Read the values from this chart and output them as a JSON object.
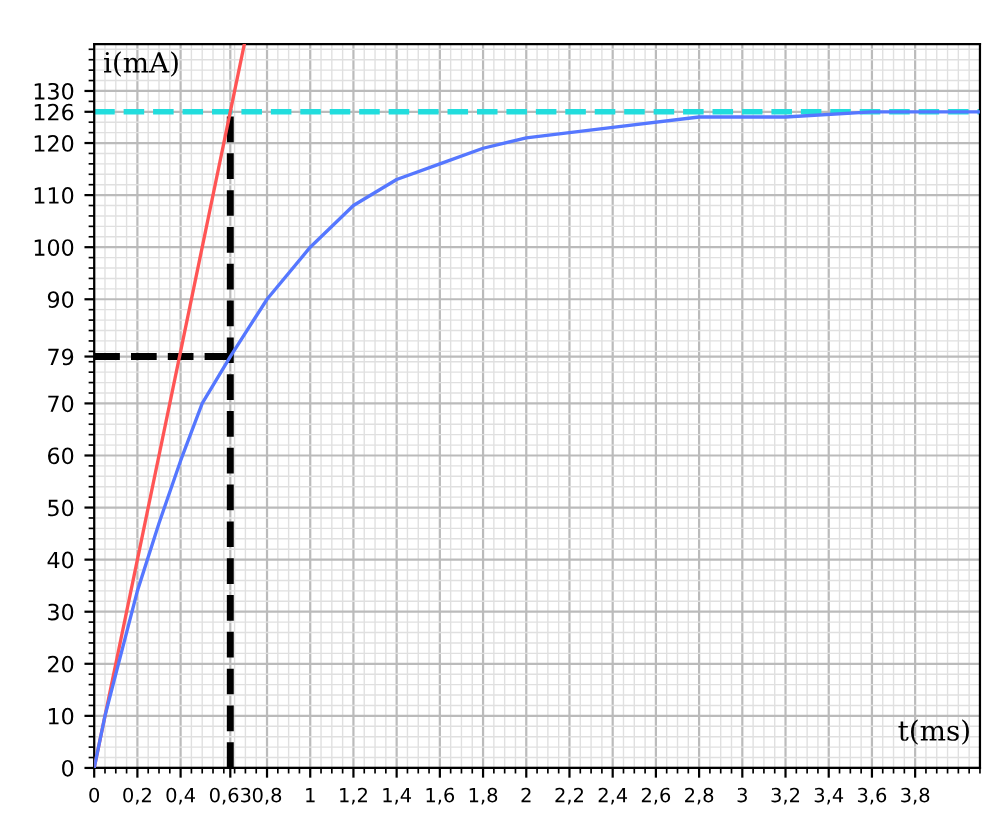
{
  "chart_data": {
    "type": "line",
    "xlabel": "t(ms)",
    "ylabel": "i(mA)",
    "xlim": [
      0,
      4.1
    ],
    "ylim": [
      0,
      139
    ],
    "xticks": [
      0,
      {
        "value": 0.2,
        "label": "0,2"
      },
      {
        "value": 0.4,
        "label": "0,4"
      },
      {
        "value": 0.63,
        "label": "0,63"
      },
      {
        "value": 0.8,
        "label": "0,8"
      },
      1,
      {
        "value": 1.2,
        "label": "1,2"
      },
      {
        "value": 1.4,
        "label": "1,4"
      },
      {
        "value": 1.6,
        "label": "1,6"
      },
      {
        "value": 1.8,
        "label": "1,8"
      },
      2,
      {
        "value": 2.2,
        "label": "2,2"
      },
      {
        "value": 2.4,
        "label": "2,4"
      },
      {
        "value": 2.6,
        "label": "2,6"
      },
      {
        "value": 2.8,
        "label": "2,8"
      },
      3,
      {
        "value": 3.2,
        "label": "3,2"
      },
      {
        "value": 3.4,
        "label": "3,4"
      },
      {
        "value": 3.6,
        "label": "3,6"
      },
      {
        "value": 3.8,
        "label": "3,8"
      }
    ],
    "yticks": [
      0,
      10,
      20,
      30,
      40,
      50,
      60,
      70,
      79,
      90,
      100,
      110,
      120,
      126,
      130
    ],
    "grid": true,
    "marker": "none",
    "series": [
      {
        "color": "#5577ff",
        "line_style": "solid",
        "x": [
          0,
          0.05,
          0.1,
          0.2,
          0.3,
          0.4,
          0.5,
          0.63,
          0.8,
          1.0,
          1.2,
          1.4,
          1.6,
          1.8,
          2.0,
          2.4,
          2.8,
          3.2,
          3.6,
          4.1
        ],
        "values": [
          0,
          10,
          18,
          34,
          47,
          59,
          70,
          79,
          90,
          100,
          108,
          113,
          116,
          119,
          121,
          123,
          125,
          125,
          126,
          126
        ]
      },
      {
        "color": "#ff5555",
        "line_style": "solid",
        "x": [
          0,
          0.695
        ],
        "values": [
          0,
          139
        ]
      },
      {
        "color": "#000000",
        "line_style": "dashed",
        "x": [
          0,
          0.63
        ],
        "values": [
          79,
          79
        ]
      },
      {
        "color": "#000000",
        "line_style": "dashed",
        "x": [
          0.63,
          0.63
        ],
        "values": [
          0,
          126
        ]
      }
    ],
    "ref_lines": [
      {
        "axis": "y",
        "value": 126,
        "color": "#22dddd",
        "line_style": "dashed"
      }
    ]
  }
}
